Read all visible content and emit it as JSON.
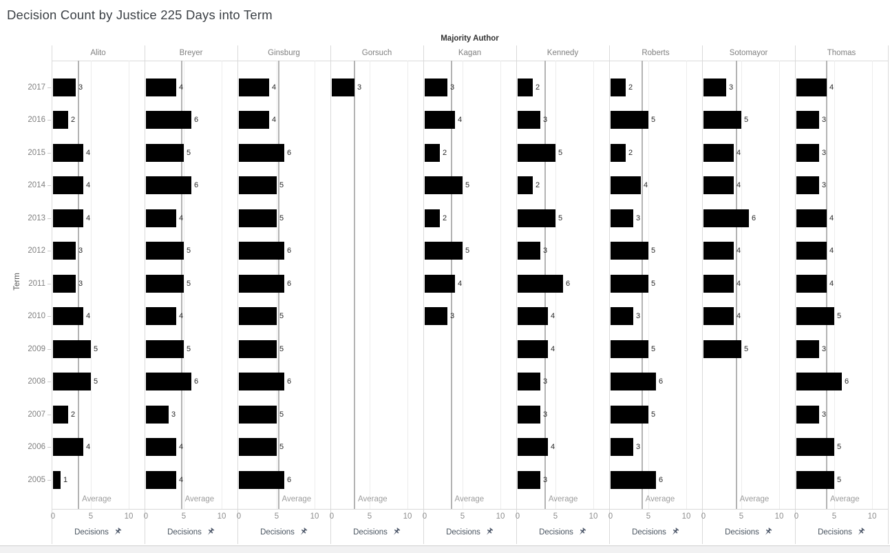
{
  "title": "Decision Count by Justice 225 Days into Term",
  "column_header": "Majority Author",
  "row_axis_label": "Term",
  "x_axis": {
    "label": "Decisions",
    "ticks": [
      "0",
      "5",
      "10"
    ],
    "tick_values": [
      0,
      5,
      10
    ],
    "reference_line_label": "Average",
    "pin_icon": "pushpin-icon"
  },
  "colors": {
    "bar": "#000000",
    "average_line": "#b3b3b3",
    "gridline": "#ececec",
    "divider": "#d9d9d9",
    "muted_text": "#7f7f7f",
    "axis_text": "#8c8c8c",
    "decisions_text": "#47525e",
    "pin": "#4e586a",
    "title_text": "#3b4045",
    "scrollbar_track": "#f1f1f2"
  },
  "chart_data": {
    "type": "bar",
    "orientation": "horizontal",
    "title": "Decision Count by Justice 225 Days into Term",
    "facet_header": "Majority Author",
    "ylabel": "Term",
    "xlabel": "Decisions",
    "xlim": [
      0,
      12
    ],
    "xticks": [
      0,
      5,
      10
    ],
    "grid": "vertical ticks at 5 and 10 per facet",
    "reference_line": "per-justice average of decisions",
    "categories": [
      "2017",
      "2016",
      "2015",
      "2014",
      "2013",
      "2012",
      "2011",
      "2010",
      "2009",
      "2008",
      "2007",
      "2006",
      "2005"
    ],
    "series": [
      {
        "name": "Alito",
        "values": [
          3,
          2,
          4,
          4,
          4,
          3,
          3,
          4,
          5,
          5,
          2,
          4,
          1
        ],
        "average": 3.38
      },
      {
        "name": "Breyer",
        "values": [
          4,
          6,
          5,
          6,
          4,
          5,
          5,
          4,
          5,
          6,
          3,
          4,
          4
        ],
        "average": 4.69
      },
      {
        "name": "Ginsburg",
        "values": [
          4,
          4,
          6,
          5,
          5,
          6,
          6,
          5,
          5,
          6,
          5,
          5,
          6
        ],
        "average": 5.23
      },
      {
        "name": "Gorsuch",
        "values": [
          3,
          null,
          null,
          null,
          null,
          null,
          null,
          null,
          null,
          null,
          null,
          null,
          null
        ],
        "average": 3.0
      },
      {
        "name": "Kagan",
        "values": [
          3,
          4,
          2,
          5,
          2,
          5,
          4,
          3,
          null,
          null,
          null,
          null,
          null
        ],
        "average": 3.5
      },
      {
        "name": "Kennedy",
        "values": [
          2,
          3,
          5,
          2,
          5,
          3,
          6,
          4,
          4,
          3,
          3,
          4,
          3
        ],
        "average": 3.62
      },
      {
        "name": "Roberts",
        "values": [
          2,
          5,
          2,
          4,
          3,
          5,
          5,
          3,
          5,
          6,
          5,
          3,
          6
        ],
        "average": 4.15
      },
      {
        "name": "Sotomayor",
        "values": [
          3,
          5,
          4,
          4,
          6,
          4,
          4,
          4,
          5,
          null,
          null,
          null,
          null
        ],
        "average": 4.33
      },
      {
        "name": "Thomas",
        "values": [
          4,
          3,
          3,
          3,
          4,
          4,
          4,
          5,
          3,
          6,
          3,
          5,
          5
        ],
        "average": 4.0
      }
    ]
  }
}
